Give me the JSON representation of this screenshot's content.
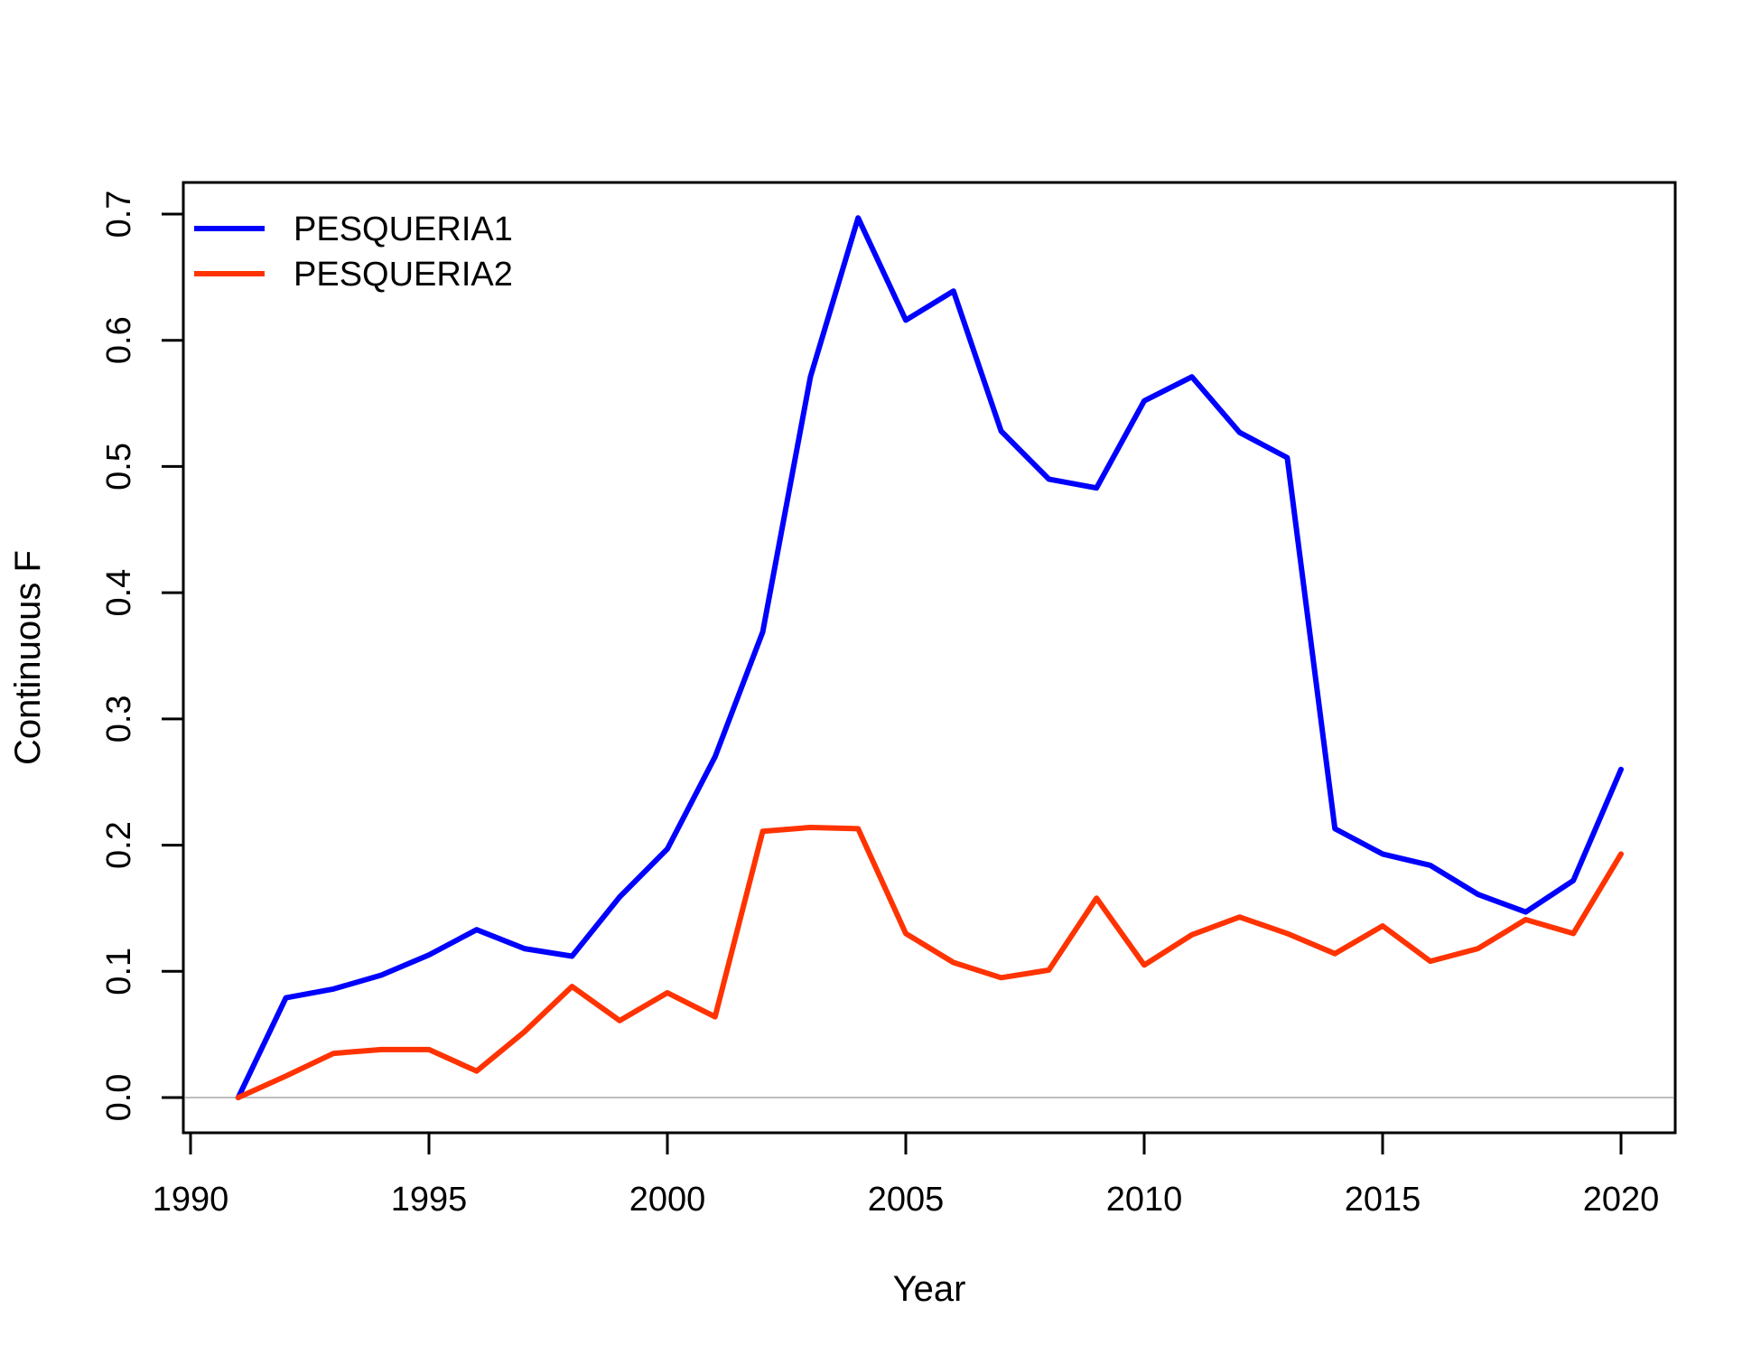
{
  "chart_data": {
    "type": "line",
    "title": "",
    "xlabel": "Year",
    "ylabel": "Continuous F",
    "x": [
      1991,
      1992,
      1993,
      1994,
      1995,
      1996,
      1997,
      1998,
      1999,
      2000,
      2001,
      2002,
      2003,
      2004,
      2005,
      2006,
      2007,
      2008,
      2009,
      2010,
      2011,
      2012,
      2013,
      2014,
      2015,
      2016,
      2017,
      2018,
      2019,
      2020
    ],
    "series": [
      {
        "name": "PESQUERIA1",
        "color": "#0000ff",
        "values": [
          0.0,
          0.079,
          0.086,
          0.097,
          0.113,
          0.133,
          0.118,
          0.112,
          0.159,
          0.197,
          0.27,
          0.369,
          0.571,
          0.697,
          0.616,
          0.639,
          0.528,
          0.49,
          0.483,
          0.552,
          0.571,
          0.527,
          0.507,
          0.213,
          0.193,
          0.184,
          0.161,
          0.147,
          0.172,
          0.26
        ]
      },
      {
        "name": "PESQUERIA2",
        "color": "#ff3300",
        "values": [
          0.0,
          0.017,
          0.035,
          0.038,
          0.038,
          0.021,
          0.052,
          0.088,
          0.061,
          0.083,
          0.064,
          0.211,
          0.214,
          0.213,
          0.13,
          0.107,
          0.095,
          0.101,
          0.158,
          0.105,
          0.129,
          0.143,
          0.13,
          0.114,
          0.136,
          0.108,
          0.118,
          0.141,
          0.13,
          0.193
        ]
      }
    ],
    "xlim": [
      1990,
      2020
    ],
    "ylim": [
      0,
      0.7
    ],
    "xticks": [
      "1990",
      "1995",
      "2000",
      "2005",
      "2010",
      "2015",
      "2020"
    ],
    "yticks": [
      "0.0",
      "0.1",
      "0.2",
      "0.3",
      "0.4",
      "0.5",
      "0.6",
      "0.7"
    ],
    "reference_line": {
      "y": 0,
      "color": "#bebebe"
    },
    "legend_position": "top-left",
    "grid": false
  }
}
